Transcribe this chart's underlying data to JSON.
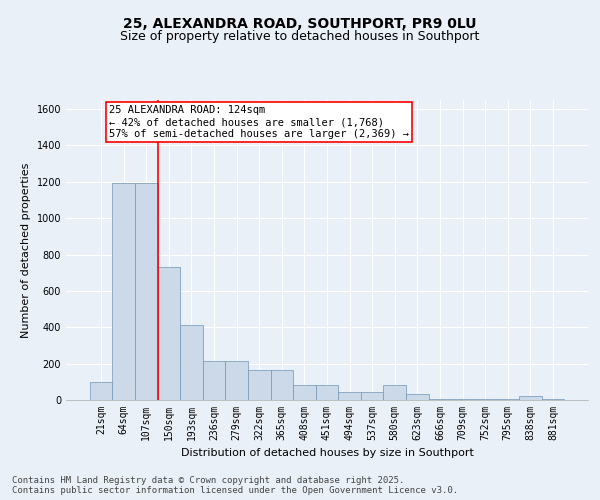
{
  "title": "25, ALEXANDRA ROAD, SOUTHPORT, PR9 0LU",
  "subtitle": "Size of property relative to detached houses in Southport",
  "xlabel": "Distribution of detached houses by size in Southport",
  "ylabel": "Number of detached properties",
  "categories": [
    "21sqm",
    "64sqm",
    "107sqm",
    "150sqm",
    "193sqm",
    "236sqm",
    "279sqm",
    "322sqm",
    "365sqm",
    "408sqm",
    "451sqm",
    "494sqm",
    "537sqm",
    "580sqm",
    "623sqm",
    "666sqm",
    "709sqm",
    "752sqm",
    "795sqm",
    "838sqm",
    "881sqm"
  ],
  "values": [
    100,
    1195,
    1195,
    730,
    415,
    215,
    215,
    165,
    165,
    80,
    80,
    45,
    45,
    80,
    35,
    8,
    8,
    8,
    8,
    20,
    8
  ],
  "bar_color": "#ccd9e8",
  "bar_edge_color": "#7096b8",
  "vline_x": 2.5,
  "vline_color": "red",
  "annotation_text": "25 ALEXANDRA ROAD: 124sqm\n← 42% of detached houses are smaller (1,768)\n57% of semi-detached houses are larger (2,369) →",
  "annotation_box_color": "white",
  "annotation_box_edge": "red",
  "ylim": [
    0,
    1650
  ],
  "yticks": [
    0,
    200,
    400,
    600,
    800,
    1000,
    1200,
    1400,
    1600
  ],
  "footer": "Contains HM Land Registry data © Crown copyright and database right 2025.\nContains public sector information licensed under the Open Government Licence v3.0.",
  "bg_color": "#eaf0f8",
  "plot_bg_color": "#eaf0f8",
  "grid_color": "white",
  "title_fontsize": 10,
  "subtitle_fontsize": 9,
  "axis_label_fontsize": 8,
  "tick_fontsize": 7,
  "footer_fontsize": 6.5,
  "annotation_fontsize": 7.5
}
